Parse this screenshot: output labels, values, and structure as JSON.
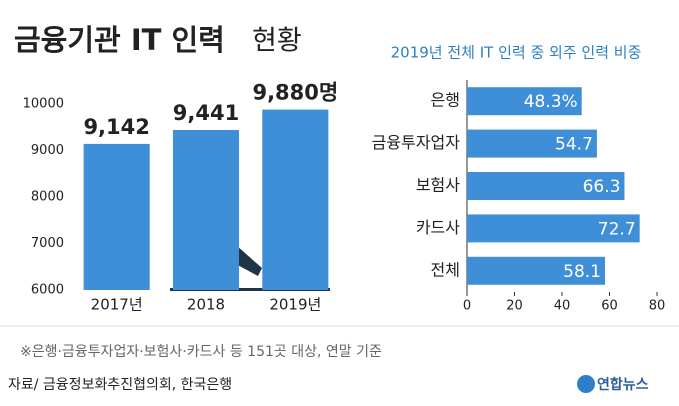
{
  "header": {
    "title": "금융기관 IT 인력",
    "subtitle": "현황"
  },
  "chart_data": [
    {
      "type": "bar",
      "categories": [
        "2017년",
        "2018",
        "2019년"
      ],
      "values": [
        9142,
        9441,
        9880
      ],
      "value_labels": [
        "9,142",
        "9,441",
        "9,880명"
      ],
      "color": "#3f8fd8",
      "ylim": [
        6000,
        10000
      ],
      "yticks": [
        6000,
        7000,
        8000,
        9000,
        10000
      ],
      "grid": false
    },
    {
      "type": "barh",
      "title": "2019년 전체 IT 인력 중 외주 인력 비중",
      "categories": [
        "은행",
        "금융투자업자",
        "보험사",
        "카드사",
        "전체"
      ],
      "values": [
        48.3,
        54.7,
        66.3,
        72.7,
        58.1
      ],
      "value_labels": [
        "48.3%",
        "54.7",
        "66.3",
        "72.7",
        "58.1"
      ],
      "color": "#3f8fd8",
      "xlim": [
        0,
        80
      ],
      "xticks": [
        0,
        20,
        40,
        60,
        80
      ],
      "grid": false
    }
  ],
  "footnote": "※은행·금융투자업자·보험사·카드사 등 151곳 대상, 연말 기준",
  "source": "자료/ 금융정보화추진협의회, 한국은행",
  "logo": "연합뉴스"
}
